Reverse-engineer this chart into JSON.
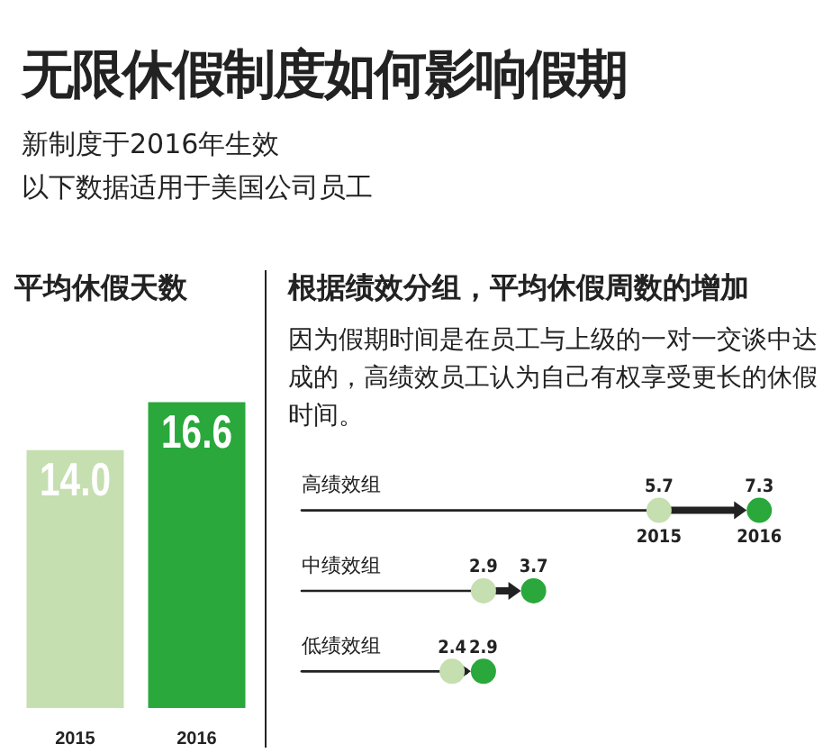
{
  "chart_data": [
    {
      "type": "other",
      "title": "无限休假制度如何影响假期",
      "subtitle": "新制度于2016年生效",
      "annotations": [
        "以下数据适用于美国公司员工"
      ]
    },
    {
      "type": "bar",
      "title": "平均休假天数",
      "categories": [
        "2015",
        "2016"
      ],
      "values": [
        14.0,
        16.6
      ],
      "value_labels": [
        "14.0",
        "16.6"
      ],
      "colors": [
        "#c5dfb0",
        "#2aa83c"
      ],
      "legend": false
    },
    {
      "type": "scatter",
      "orientation": "horizontal",
      "title": "根据绩效分组，平均休假周数的增加",
      "subtitle": "因为假期时间是在员工与上级的一对一交谈中达成的，高绩效员工认为自己有权享受更长的休假时间。",
      "categories": [
        "高绩效组",
        "中绩效组",
        "低绩效组"
      ],
      "series": [
        {
          "name": "2015",
          "color": "#c5dfb0",
          "values": [
            5.7,
            2.9,
            2.4
          ]
        },
        {
          "name": "2016",
          "color": "#2aa83c",
          "values": [
            7.3,
            3.7,
            2.9
          ]
        }
      ],
      "data_labels": true,
      "legend": false
    }
  ]
}
